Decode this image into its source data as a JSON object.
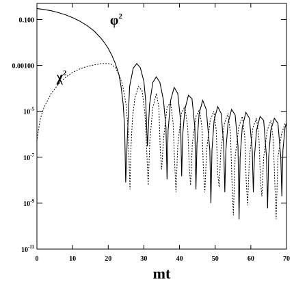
{
  "chart_data": {
    "type": "line",
    "title": "",
    "xlabel": "mt",
    "ylabel": "",
    "xlim": [
      0,
      70
    ],
    "ylim": [
      1e-11,
      1
    ],
    "y_scale": "log",
    "grid": false,
    "legend": "none",
    "x_ticks": [
      {
        "value": 0,
        "label": "0"
      },
      {
        "value": 10,
        "label": "10"
      },
      {
        "value": 20,
        "label": "20"
      },
      {
        "value": 30,
        "label": "30"
      },
      {
        "value": 40,
        "label": "40"
      },
      {
        "value": 50,
        "label": "50"
      },
      {
        "value": 60,
        "label": "60"
      },
      {
        "value": 70,
        "label": "70"
      }
    ],
    "y_ticks": [
      {
        "value": 0.1,
        "label": "0.100",
        "base": "",
        "exp": ""
      },
      {
        "value": 0.001,
        "label": "0.00100",
        "base": "",
        "exp": ""
      },
      {
        "value": 1e-05,
        "label": "",
        "base": "10",
        "exp": "-5"
      },
      {
        "value": 1e-07,
        "label": "",
        "base": "10",
        "exp": "-7"
      },
      {
        "value": 1e-09,
        "label": "",
        "base": "10",
        "exp": "-9"
      },
      {
        "value": 1e-11,
        "label": "",
        "base": "10",
        "exp": "-11"
      }
    ],
    "annotations": [
      {
        "base": "φ",
        "sup": "2",
        "x": 20.5,
        "y": 0.06
      },
      {
        "base": "χ",
        "sup": "2",
        "x": 5.5,
        "y": 0.0002
      }
    ],
    "series": [
      {
        "style": "solid",
        "color": "#000000",
        "x": [
          0,
          2,
          4,
          6,
          8,
          10,
          12,
          14,
          16,
          18,
          19,
          20,
          21,
          22,
          23,
          23.6,
          24.2,
          24.6,
          24.9,
          25.4,
          26,
          27,
          28,
          29,
          30,
          30.5,
          31,
          31.6,
          32.5,
          33.5,
          34.5,
          35.5,
          36.2,
          36.5,
          36.8,
          37.5,
          38.5,
          39.5,
          40.3,
          40.6,
          40.9,
          41.5,
          42.5,
          43.5,
          44.3,
          44.6,
          44.9,
          45.5,
          46.5,
          47.5,
          48.5,
          48.8,
          49.1,
          49.7,
          50.7,
          51.7,
          52.4,
          52.7,
          53,
          53.6,
          54.6,
          55.6,
          56.4,
          56.7,
          57,
          57.6,
          58.6,
          59.6,
          60.4,
          60.7,
          61,
          61.6,
          62.6,
          63.6,
          64.4,
          64.7,
          65,
          65.6,
          66.6,
          67.6,
          68.4,
          68.7,
          69,
          69.6,
          70
        ],
        "y": [
          0.3,
          0.27,
          0.24,
          0.2,
          0.16,
          0.12,
          0.085,
          0.055,
          0.032,
          0.015,
          0.0095,
          0.0055,
          0.0028,
          0.0012,
          0.0004,
          0.00012,
          2e-05,
          2e-06,
          8e-09,
          1e-06,
          0.00012,
          0.00075,
          0.0012,
          0.0008,
          0.0002,
          3e-05,
          3e-07,
          2e-05,
          0.00018,
          0.00032,
          0.00018,
          3e-05,
          2e-06,
          1.1e-08,
          1.5e-06,
          3e-05,
          0.00011,
          6e-05,
          4e-06,
          1.5e-08,
          1e-06,
          1.2e-05,
          5e-05,
          3.5e-05,
          2e-06,
          4e-09,
          4e-07,
          8e-06,
          3e-05,
          1.2e-05,
          2e-07,
          1e-09,
          2e-07,
          4e-06,
          1.6e-05,
          8e-06,
          3e-07,
          3e-09,
          2e-07,
          3e-06,
          1.2e-05,
          7e-06,
          3e-07,
          2e-10,
          1e-07,
          2e-06,
          9e-06,
          5e-06,
          2e-07,
          3e-09,
          1e-07,
          1.5e-06,
          6e-06,
          4e-06,
          1e-07,
          6e-10,
          1e-07,
          1.5e-06,
          5e-06,
          3e-06,
          1e-07,
          2e-09,
          2e-07,
          2e-06,
          3e-06
        ]
      },
      {
        "style": "dotted",
        "color": "#000000",
        "x": [
          0,
          0.5,
          1,
          2,
          4,
          6,
          8,
          10,
          12,
          14,
          16,
          18,
          20,
          21,
          22,
          23,
          24,
          25,
          25.6,
          26.1,
          26.4,
          26.8,
          27.5,
          28.5,
          29.5,
          30.3,
          30.8,
          31.2,
          31.7,
          32.5,
          33.5,
          34.2,
          34.6,
          35,
          35.5,
          36.5,
          37.5,
          38.2,
          38.6,
          39,
          39.5,
          40.5,
          41.5,
          42.3,
          42.7,
          43.1,
          43.6,
          44.6,
          45.6,
          46.3,
          46.7,
          47.1,
          47.6,
          48.6,
          49.6,
          50.3,
          50.7,
          51.1,
          51.6,
          52.6,
          53.6,
          54.3,
          54.7,
          55.1,
          55.6,
          56.6,
          57.6,
          58.3,
          58.7,
          59.1,
          59.6,
          60.6,
          61.6,
          62.3,
          62.7,
          63.1,
          63.6,
          64.6,
          65.6,
          66.3,
          66.7,
          67.1,
          67.6,
          68.6,
          69.6,
          70
        ],
        "y": [
          5e-07,
          1.8e-06,
          5e-06,
          1.5e-05,
          6e-05,
          0.00015,
          0.0003,
          0.0005,
          0.0007,
          0.0009,
          0.00105,
          0.0012,
          0.0012,
          0.0011,
          0.0008,
          0.0004,
          0.00015,
          2e-05,
          1.5e-06,
          4e-09,
          3e-07,
          5e-06,
          4e-05,
          0.00012,
          8e-05,
          8e-06,
          2e-07,
          6e-09,
          6e-07,
          1.4e-05,
          6e-05,
          1.5e-05,
          2e-07,
          3e-08,
          6e-07,
          1.5e-05,
          2.5e-05,
          3e-06,
          8e-08,
          3e-09,
          3e-07,
          8e-06,
          1.6e-05,
          2e-06,
          5e-08,
          6e-09,
          4e-07,
          6e-06,
          1.2e-05,
          2e-06,
          3e-08,
          3e-09,
          2e-07,
          4e-06,
          1e-05,
          1.5e-06,
          2e-08,
          5e-09,
          2e-07,
          3e-06,
          8e-06,
          1e-06,
          1e-08,
          3e-10,
          1e-07,
          2e-06,
          6e-06,
          8e-07,
          1e-08,
          8e-10,
          1e-07,
          2e-06,
          5e-06,
          6e-07,
          1e-08,
          2e-09,
          1e-07,
          1.5e-06,
          4e-06,
          6e-07,
          1e-08,
          2e-10,
          1e-07,
          1e-06,
          3e-06,
          2e-06
        ]
      }
    ]
  }
}
